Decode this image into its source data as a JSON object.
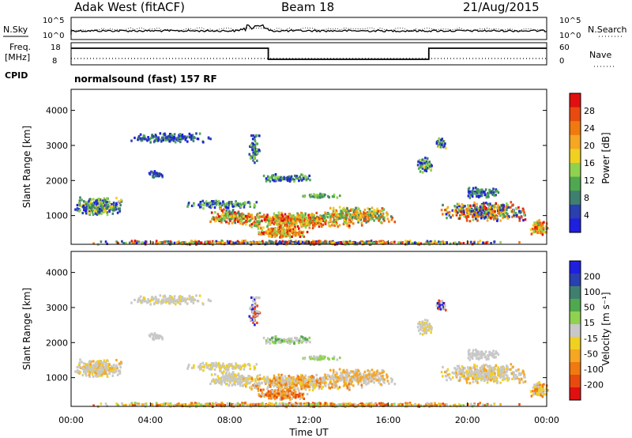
{
  "header": {
    "station": "Adak West (fitACF)",
    "beam": "Beam 18",
    "date": "21/Aug/2015"
  },
  "side_labels": {
    "nsky": "N.Sky",
    "nsearch": "N.Search",
    "freq": "Freq.",
    "freq_unit": "[MHz]",
    "nave": "Nave",
    "cpid": "CPID"
  },
  "noise_axis": {
    "top": "10^5",
    "bottom": "10^0",
    "right_top": "10^5",
    "right_bottom": "10^0"
  },
  "freq_axis": {
    "left_top": "18",
    "left_bottom": "8",
    "right_top": "60",
    "right_bottom": "0"
  },
  "cpid_text": "normalsound (fast) 157 RF",
  "colors": {
    "power": [
      "#1f1fe0",
      "#2a3fb0",
      "#3f7f6f",
      "#4fa84f",
      "#8fd24f",
      "#f0d020",
      "#f5a623",
      "#f07a10",
      "#e84a10",
      "#e01010"
    ],
    "velocity": [
      "#1f1fe0",
      "#2a3fb0",
      "#3f7f6f",
      "#4fa84f",
      "#8fd24f",
      "#c8c8c8",
      "#f0d020",
      "#f5a623",
      "#f07a10",
      "#e84a10",
      "#e01010"
    ]
  },
  "chart_data": [
    {
      "type": "line",
      "title": "N.Sky / N.Search",
      "y_scale": "log",
      "ylim": [
        1,
        100000
      ],
      "xlim_hours": [
        0,
        24
      ]
    },
    {
      "type": "line",
      "title": "Freq. / Nave",
      "series": [
        {
          "name": "Freq.",
          "x": [
            0,
            9.95,
            9.95,
            18.05,
            18.05,
            24
          ],
          "values": [
            15.5,
            15.5,
            10.5,
            10.5,
            15.5,
            15.5
          ]
        }
      ],
      "ylim": [
        8,
        18
      ]
    },
    {
      "type": "heatmap",
      "ylabel": "Slant Range [km]",
      "yticks": [
        "1000",
        "2000",
        "3000",
        "4000"
      ],
      "ylim": [
        180,
        4600
      ],
      "colorbar_label": "Power [dB]",
      "colorbar_ticks": [
        "4",
        "8",
        "12",
        "16",
        "20",
        "24",
        "28"
      ]
    },
    {
      "type": "heatmap",
      "xlabel": "Time UT",
      "ylabel": "Slant Range [km]",
      "xticks": [
        "00:00",
        "04:00",
        "08:00",
        "12:00",
        "16:00",
        "20:00",
        "00:00"
      ],
      "yticks": [
        "1000",
        "2000",
        "3000",
        "4000"
      ],
      "ylim": [
        180,
        4600
      ],
      "colorbar_label": "Velocity [m s⁻¹]",
      "colorbar_ticks": [
        "200",
        "100",
        "50",
        "15",
        "-15",
        "-50",
        "-100",
        "-200"
      ]
    }
  ]
}
